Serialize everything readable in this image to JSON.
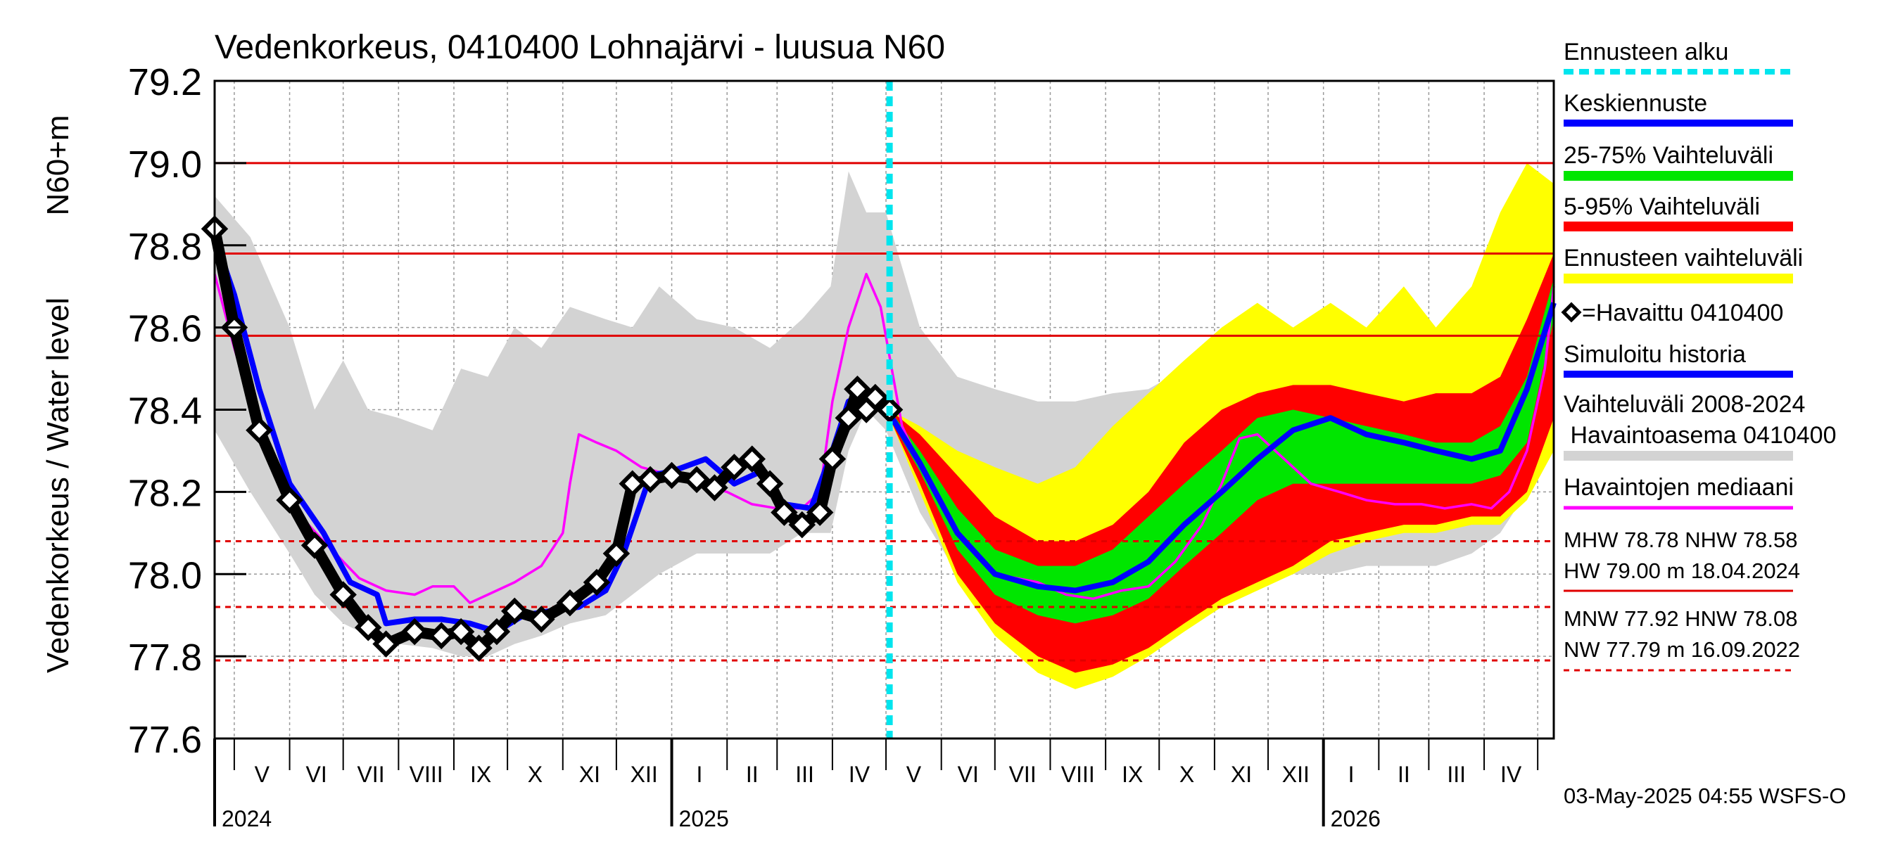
{
  "chart_data": {
    "type": "line",
    "title": "Vedenkorkeus, 0410400 Lohnajärvi - luusua N60",
    "ylabel": "Vedenkorkeus / Water level",
    "ylabel_unit": "N60+m",
    "ylim": [
      77.6,
      79.2
    ],
    "y_ticks": [
      "77.6",
      "77.8",
      "78.0",
      "78.2",
      "78.4",
      "78.6",
      "78.8",
      "79.0",
      "79.2"
    ],
    "x_start": "2024-04-20",
    "x_end": "2026-05-10",
    "forecast_start": "2025-05-03",
    "months": [
      {
        "label": "V",
        "date": "2024-05-01"
      },
      {
        "label": "VI",
        "date": "2024-06-01"
      },
      {
        "label": "VII",
        "date": "2024-07-01"
      },
      {
        "label": "VIII",
        "date": "2024-08-01"
      },
      {
        "label": "IX",
        "date": "2024-09-01"
      },
      {
        "label": "X",
        "date": "2024-10-01"
      },
      {
        "label": "XI",
        "date": "2024-11-01"
      },
      {
        "label": "XII",
        "date": "2024-12-01"
      },
      {
        "label": "I",
        "date": "2025-01-01"
      },
      {
        "label": "II",
        "date": "2025-02-01"
      },
      {
        "label": "III",
        "date": "2025-03-01"
      },
      {
        "label": "IV",
        "date": "2025-04-01"
      },
      {
        "label": "V",
        "date": "2025-05-01"
      },
      {
        "label": "VI",
        "date": "2025-06-01"
      },
      {
        "label": "VII",
        "date": "2025-07-01"
      },
      {
        "label": "VIII",
        "date": "2025-08-01"
      },
      {
        "label": "IX",
        "date": "2025-09-01"
      },
      {
        "label": "X",
        "date": "2025-10-01"
      },
      {
        "label": "XI",
        "date": "2025-11-01"
      },
      {
        "label": "XII",
        "date": "2025-12-01"
      },
      {
        "label": "I",
        "date": "2026-01-01"
      },
      {
        "label": "II",
        "date": "2026-02-01"
      },
      {
        "label": "III",
        "date": "2026-03-01"
      },
      {
        "label": "IV",
        "date": "2026-04-01"
      },
      {
        "label": "",
        "date": "2026-05-01"
      }
    ],
    "years": [
      {
        "label": "2024",
        "date": "2024-05-01",
        "line_date": "2024-04-20"
      },
      {
        "label": "2025",
        "date": "2025-01-01",
        "line_date": "2025-01-01"
      },
      {
        "label": "2026",
        "date": "2026-01-01",
        "line_date": "2026-01-01"
      }
    ],
    "reference_lines": [
      {
        "name": "HW",
        "value": 79.0,
        "style": "solid"
      },
      {
        "name": "MHW",
        "value": 78.78,
        "style": "solid"
      },
      {
        "name": "NHW",
        "value": 78.58,
        "style": "solid"
      },
      {
        "name": "HNW",
        "value": 78.08,
        "style": "dashed"
      },
      {
        "name": "MNW",
        "value": 77.92,
        "style": "dashed"
      },
      {
        "name": "NW",
        "value": 77.79,
        "style": "dashed"
      }
    ],
    "series": {
      "history_range": {
        "x": [
          "2024-04-20",
          "2024-05-10",
          "2024-06-01",
          "2024-06-15",
          "2024-07-01",
          "2024-07-15",
          "2024-08-01",
          "2024-08-20",
          "2024-09-05",
          "2024-09-20",
          "2024-10-05",
          "2024-10-20",
          "2024-11-05",
          "2024-11-25",
          "2024-12-10",
          "2024-12-25",
          "2025-01-15",
          "2025-02-05",
          "2025-02-25",
          "2025-03-15",
          "2025-03-31",
          "2025-04-10",
          "2025-04-20",
          "2025-05-01",
          "2025-05-20",
          "2025-06-10",
          "2025-07-01",
          "2025-07-25",
          "2025-08-15",
          "2025-09-05",
          "2025-09-25",
          "2025-10-15",
          "2025-11-05",
          "2025-11-25",
          "2025-12-15",
          "2026-01-05",
          "2026-01-25",
          "2026-02-15",
          "2026-03-05",
          "2026-03-25",
          "2026-04-10",
          "2026-04-25",
          "2026-05-10"
        ],
        "high": [
          78.92,
          78.82,
          78.6,
          78.4,
          78.52,
          78.4,
          78.38,
          78.35,
          78.5,
          78.48,
          78.6,
          78.55,
          78.65,
          78.62,
          78.6,
          78.7,
          78.62,
          78.6,
          78.55,
          78.62,
          78.7,
          78.98,
          78.88,
          78.88,
          78.6,
          78.48,
          78.45,
          78.42,
          78.42,
          78.44,
          78.45,
          78.5,
          78.5,
          78.55,
          78.55,
          78.55,
          78.58,
          78.55,
          78.55,
          78.6,
          78.75,
          78.85,
          78.95
        ],
        "low": [
          78.35,
          78.2,
          78.05,
          77.95,
          77.88,
          77.85,
          77.83,
          77.82,
          77.8,
          77.8,
          77.83,
          77.85,
          77.88,
          77.9,
          77.95,
          78.0,
          78.05,
          78.05,
          78.05,
          78.1,
          78.1,
          78.3,
          78.4,
          78.35,
          78.15,
          78.0,
          77.92,
          77.88,
          77.85,
          77.85,
          77.88,
          77.9,
          77.95,
          77.98,
          78.0,
          78.0,
          78.02,
          78.02,
          78.02,
          78.05,
          78.1,
          78.2,
          78.35
        ]
      },
      "forecast_range": {
        "x": [
          "2025-05-03",
          "2025-05-20",
          "2025-06-10",
          "2025-07-01",
          "2025-07-25",
          "2025-08-15",
          "2025-09-05",
          "2025-09-25",
          "2025-10-15",
          "2025-11-05",
          "2025-11-25",
          "2025-12-15",
          "2026-01-05",
          "2026-01-25",
          "2026-02-15",
          "2026-03-05",
          "2026-03-25",
          "2026-04-10",
          "2026-04-25",
          "2026-05-10"
        ],
        "high": [
          78.4,
          78.36,
          78.3,
          78.26,
          78.22,
          78.26,
          78.36,
          78.44,
          78.52,
          78.6,
          78.66,
          78.6,
          78.66,
          78.6,
          78.7,
          78.6,
          78.7,
          78.88,
          79.0,
          78.95
        ],
        "low": [
          78.38,
          78.2,
          77.98,
          77.85,
          77.76,
          77.72,
          77.75,
          77.8,
          77.86,
          77.92,
          77.96,
          78.0,
          78.05,
          78.08,
          78.1,
          78.1,
          78.12,
          78.12,
          78.18,
          78.3
        ]
      },
      "p5_95": {
        "x": [
          "2025-05-03",
          "2025-05-20",
          "2025-06-10",
          "2025-07-01",
          "2025-07-25",
          "2025-08-15",
          "2025-09-05",
          "2025-09-25",
          "2025-10-15",
          "2025-11-05",
          "2025-11-25",
          "2025-12-15",
          "2026-01-05",
          "2026-01-25",
          "2026-02-15",
          "2026-03-05",
          "2026-03-25",
          "2026-04-10",
          "2026-04-25",
          "2026-05-10"
        ],
        "high": [
          78.4,
          78.34,
          78.24,
          78.14,
          78.08,
          78.08,
          78.12,
          78.2,
          78.32,
          78.4,
          78.44,
          78.46,
          78.46,
          78.44,
          78.42,
          78.44,
          78.44,
          78.48,
          78.62,
          78.78
        ],
        "low": [
          78.38,
          78.22,
          78.0,
          77.88,
          77.8,
          77.76,
          77.78,
          77.82,
          77.88,
          77.94,
          77.98,
          78.02,
          78.08,
          78.1,
          78.12,
          78.12,
          78.14,
          78.14,
          78.2,
          78.38
        ]
      },
      "p25_75": {
        "x": [
          "2025-05-03",
          "2025-05-20",
          "2025-06-10",
          "2025-07-01",
          "2025-07-25",
          "2025-08-15",
          "2025-09-05",
          "2025-09-25",
          "2025-10-15",
          "2025-11-05",
          "2025-11-25",
          "2025-12-15",
          "2026-01-05",
          "2026-01-25",
          "2026-02-15",
          "2026-03-05",
          "2026-03-25",
          "2026-04-10",
          "2026-04-25",
          "2026-05-10"
        ],
        "high": [
          78.4,
          78.3,
          78.16,
          78.06,
          78.02,
          78.02,
          78.06,
          78.14,
          78.22,
          78.3,
          78.38,
          78.4,
          78.38,
          78.36,
          78.34,
          78.32,
          78.32,
          78.36,
          78.48,
          78.72
        ],
        "low": [
          78.38,
          78.25,
          78.06,
          77.95,
          77.9,
          77.88,
          77.9,
          77.94,
          78.02,
          78.1,
          78.18,
          78.22,
          78.22,
          78.22,
          78.22,
          78.22,
          78.22,
          78.24,
          78.32,
          78.62
        ]
      },
      "median_forecast": {
        "x": [
          "2025-05-03",
          "2025-05-20",
          "2025-06-10",
          "2025-07-01",
          "2025-07-25",
          "2025-08-15",
          "2025-09-05",
          "2025-09-25",
          "2025-10-15",
          "2025-11-05",
          "2025-11-25",
          "2025-12-15",
          "2026-01-05",
          "2026-01-25",
          "2026-02-15",
          "2026-03-05",
          "2026-03-25",
          "2026-04-10",
          "2026-04-25",
          "2026-05-10"
        ],
        "y": [
          78.39,
          78.27,
          78.1,
          78.0,
          77.97,
          77.96,
          77.98,
          78.03,
          78.12,
          78.2,
          78.28,
          78.35,
          78.38,
          78.34,
          78.32,
          78.3,
          78.28,
          78.3,
          78.45,
          78.66
        ]
      },
      "simulated_history": {
        "x": [
          "2024-04-20",
          "2024-05-01",
          "2024-05-15",
          "2024-06-01",
          "2024-06-20",
          "2024-07-05",
          "2024-07-20",
          "2024-07-25",
          "2024-08-10",
          "2024-08-25",
          "2024-09-10",
          "2024-09-25",
          "2024-10-10",
          "2024-10-25",
          "2024-11-10",
          "2024-11-25",
          "2024-12-05",
          "2024-12-20",
          "2025-01-01",
          "2025-01-20",
          "2025-02-05",
          "2025-02-20",
          "2025-03-05",
          "2025-03-20",
          "2025-04-01",
          "2025-04-10",
          "2025-04-20",
          "2025-05-03"
        ],
        "y": [
          78.82,
          78.68,
          78.45,
          78.22,
          78.1,
          77.98,
          77.95,
          77.88,
          77.89,
          77.89,
          77.88,
          77.86,
          77.9,
          77.91,
          77.92,
          77.96,
          78.05,
          78.24,
          78.25,
          78.28,
          78.22,
          78.25,
          78.17,
          78.16,
          78.3,
          78.42,
          78.44,
          78.4
        ]
      },
      "observed": {
        "x": [
          "2024-04-20",
          "2024-05-01",
          "2024-05-15",
          "2024-06-01",
          "2024-06-15",
          "2024-07-01",
          "2024-07-15",
          "2024-07-25",
          "2024-08-10",
          "2024-08-25",
          "2024-09-05",
          "2024-09-15",
          "2024-09-25",
          "2024-10-05",
          "2024-10-20",
          "2024-11-05",
          "2024-11-20",
          "2024-12-01",
          "2024-12-10",
          "2024-12-20",
          "2025-01-01",
          "2025-01-15",
          "2025-01-25",
          "2025-02-05",
          "2025-02-15",
          "2025-02-25",
          "2025-03-05",
          "2025-03-15",
          "2025-03-25",
          "2025-04-01",
          "2025-04-10",
          "2025-04-15",
          "2025-04-20",
          "2025-04-25",
          "2025-05-03"
        ],
        "y": [
          78.84,
          78.6,
          78.35,
          78.18,
          78.07,
          77.95,
          77.87,
          77.83,
          77.86,
          77.85,
          77.86,
          77.82,
          77.86,
          77.91,
          77.89,
          77.93,
          77.98,
          78.05,
          78.22,
          78.23,
          78.24,
          78.23,
          78.21,
          78.26,
          78.28,
          78.22,
          78.15,
          78.12,
          78.15,
          78.28,
          78.38,
          78.45,
          78.4,
          78.43,
          78.4
        ]
      },
      "observation_median": {
        "x": [
          "2024-04-20",
          "2024-05-01",
          "2024-05-15",
          "2024-06-01",
          "2024-06-20",
          "2024-07-10",
          "2024-07-25",
          "2024-08-10",
          "2024-08-20",
          "2024-09-01",
          "2024-09-10",
          "2024-09-20",
          "2024-10-05",
          "2024-10-20",
          "2024-11-01",
          "2024-11-05",
          "2024-11-10",
          "2024-11-20",
          "2024-12-01",
          "2024-12-15",
          "2025-01-01",
          "2025-01-15",
          "2025-02-01",
          "2025-02-15",
          "2025-03-01",
          "2025-03-15",
          "2025-03-25",
          "2025-04-01",
          "2025-04-10",
          "2025-04-20",
          "2025-04-28",
          "2025-05-10",
          "2025-05-25",
          "2025-06-10",
          "2025-07-01",
          "2025-07-25",
          "2025-08-10",
          "2025-08-25",
          "2025-09-10",
          "2025-09-25",
          "2025-10-10",
          "2025-10-25",
          "2025-11-05",
          "2025-11-15",
          "2025-11-25",
          "2025-12-10",
          "2025-12-25",
          "2026-01-10",
          "2026-01-25",
          "2026-02-10",
          "2026-02-25",
          "2026-03-10",
          "2026-03-25",
          "2026-04-05",
          "2026-04-15",
          "2026-04-25",
          "2026-05-05",
          "2026-05-10"
        ],
        "y": [
          78.73,
          78.55,
          78.35,
          78.17,
          78.08,
          77.99,
          77.96,
          77.95,
          77.97,
          77.97,
          77.93,
          77.95,
          77.98,
          78.02,
          78.1,
          78.22,
          78.34,
          78.32,
          78.3,
          78.26,
          78.24,
          78.22,
          78.2,
          78.17,
          78.16,
          78.16,
          78.2,
          78.42,
          78.6,
          78.73,
          78.65,
          78.36,
          78.22,
          78.1,
          78.0,
          77.98,
          77.95,
          77.94,
          77.96,
          77.97,
          78.03,
          78.12,
          78.22,
          78.33,
          78.34,
          78.28,
          78.22,
          78.2,
          78.18,
          78.17,
          78.17,
          78.16,
          78.17,
          78.16,
          78.2,
          78.3,
          78.5,
          78.7
        ]
      }
    }
  },
  "legend": {
    "forecast_start": "Ennusteen alku",
    "median_forecast": "Keskiennuste",
    "p25_75": "25-75% Vaihteluväli",
    "p5_95": "5-95% Vaihteluväli",
    "forecast_range": "Ennusteen vaihteluväli",
    "observed": "=Havaittu 0410400",
    "simulated": "Simuloitu historia",
    "history_range_1": "Vaihteluväli 2008-2024",
    "history_range_2": " Havaintoasema 0410400",
    "obs_median": "Havaintojen mediaani",
    "stats_high_1": "MHW  78.78 NHW  78.58",
    "stats_high_2": "HW  79.00 m 18.04.2024",
    "stats_low_1": "MNW  77.92 HNW  78.08",
    "stats_low_2": "NW  77.79 m 16.09.2022"
  },
  "footer": "03-May-2025 04:55 WSFS-O",
  "colors": {
    "history_range": "#d3d3d3",
    "forecast_range": "#ffff00",
    "p5_95": "#ff0000",
    "p25_75": "#00e600",
    "median_forecast": "#0000ff",
    "simulated": "#0000ff",
    "observed": "#000000",
    "obs_median": "#ff00ff",
    "forecast_start": "#00e5ee",
    "ref_line": "#e00000"
  }
}
